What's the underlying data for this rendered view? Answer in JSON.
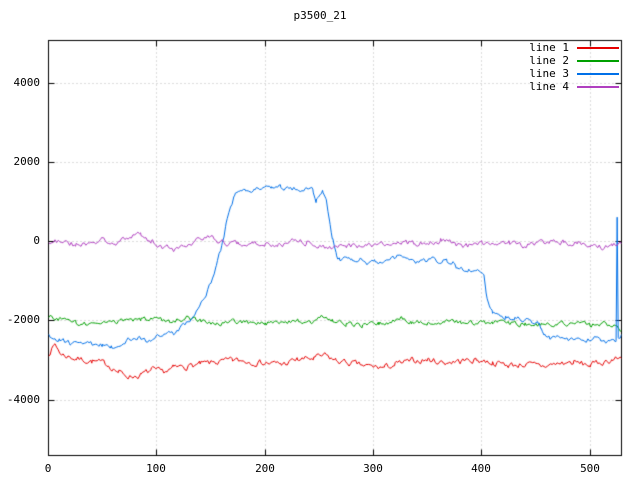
{
  "window_title": "p3500_21",
  "chart_data": {
    "type": "line",
    "title": "p3500_21",
    "xlim": [
      0,
      529
    ],
    "ylim": [
      -5400,
      5080
    ],
    "xticks": [
      0,
      100,
      200,
      300,
      400,
      500
    ],
    "yticks": [
      -4000,
      -2000,
      0,
      2000,
      4000
    ],
    "grid": true,
    "legend_position": "top-right",
    "background": "#ffffff",
    "axis_color": "#000000",
    "grid_color": "#b8b8b8",
    "series": [
      {
        "name": "line 1",
        "color": "#e60000",
        "noise": 70,
        "keypoints": [
          [
            0,
            -2820
          ],
          [
            6,
            -2600
          ],
          [
            12,
            -2850
          ],
          [
            25,
            -2950
          ],
          [
            40,
            -3020
          ],
          [
            55,
            -3100
          ],
          [
            65,
            -3300
          ],
          [
            75,
            -3400
          ],
          [
            85,
            -3380
          ],
          [
            95,
            -3250
          ],
          [
            105,
            -3300
          ],
          [
            115,
            -3200
          ],
          [
            125,
            -3150
          ],
          [
            140,
            -3100
          ],
          [
            155,
            -3050
          ],
          [
            170,
            -3000
          ],
          [
            185,
            -3020
          ],
          [
            200,
            -3060
          ],
          [
            215,
            -3100
          ],
          [
            230,
            -2980
          ],
          [
            245,
            -2950
          ],
          [
            255,
            -2880
          ],
          [
            265,
            -3000
          ],
          [
            280,
            -3080
          ],
          [
            295,
            -3150
          ],
          [
            310,
            -3180
          ],
          [
            320,
            -3100
          ],
          [
            335,
            -3020
          ],
          [
            350,
            -2980
          ],
          [
            365,
            -3050
          ],
          [
            380,
            -3020
          ],
          [
            395,
            -2980
          ],
          [
            410,
            -3050
          ],
          [
            425,
            -3120
          ],
          [
            440,
            -3100
          ],
          [
            455,
            -3150
          ],
          [
            470,
            -3080
          ],
          [
            485,
            -3050
          ],
          [
            500,
            -3120
          ],
          [
            510,
            -3050
          ],
          [
            520,
            -2980
          ],
          [
            529,
            -2940
          ]
        ]
      },
      {
        "name": "line 2",
        "color": "#00a000",
        "noise": 55,
        "keypoints": [
          [
            0,
            -1880
          ],
          [
            10,
            -1950
          ],
          [
            25,
            -2050
          ],
          [
            40,
            -2100
          ],
          [
            55,
            -2050
          ],
          [
            70,
            -2000
          ],
          [
            85,
            -1980
          ],
          [
            100,
            -1950
          ],
          [
            112,
            -2060
          ],
          [
            122,
            -1950
          ],
          [
            130,
            -1880
          ],
          [
            140,
            -2000
          ],
          [
            155,
            -2060
          ],
          [
            170,
            -2010
          ],
          [
            185,
            -2040
          ],
          [
            200,
            -2060
          ],
          [
            215,
            -2020
          ],
          [
            230,
            -1990
          ],
          [
            242,
            -2040
          ],
          [
            252,
            -1870
          ],
          [
            262,
            -2000
          ],
          [
            275,
            -2080
          ],
          [
            290,
            -2120
          ],
          [
            305,
            -2060
          ],
          [
            318,
            -2000
          ],
          [
            326,
            -1900
          ],
          [
            335,
            -2030
          ],
          [
            350,
            -2060
          ],
          [
            365,
            -2010
          ],
          [
            380,
            -2040
          ],
          [
            395,
            -2060
          ],
          [
            410,
            -2030
          ],
          [
            425,
            -2060
          ],
          [
            440,
            -2080
          ],
          [
            455,
            -2100
          ],
          [
            470,
            -2060
          ],
          [
            485,
            -2080
          ],
          [
            500,
            -2100
          ],
          [
            512,
            -2080
          ],
          [
            522,
            -2150
          ],
          [
            529,
            -2220
          ]
        ]
      },
      {
        "name": "line 3",
        "color": "#0070e8",
        "noise": 55,
        "keypoints": [
          [
            0,
            -2380
          ],
          [
            10,
            -2480
          ],
          [
            20,
            -2550
          ],
          [
            30,
            -2500
          ],
          [
            40,
            -2560
          ],
          [
            50,
            -2620
          ],
          [
            58,
            -2660
          ],
          [
            66,
            -2600
          ],
          [
            74,
            -2480
          ],
          [
            82,
            -2400
          ],
          [
            90,
            -2500
          ],
          [
            98,
            -2430
          ],
          [
            104,
            -2340
          ],
          [
            110,
            -2290
          ],
          [
            115,
            -2340
          ],
          [
            120,
            -2210
          ],
          [
            126,
            -2090
          ],
          [
            132,
            -1930
          ],
          [
            138,
            -1720
          ],
          [
            144,
            -1430
          ],
          [
            150,
            -1050
          ],
          [
            155,
            -600
          ],
          [
            160,
            -100
          ],
          [
            164,
            420
          ],
          [
            168,
            900
          ],
          [
            172,
            1180
          ],
          [
            176,
            1290
          ],
          [
            182,
            1310
          ],
          [
            190,
            1340
          ],
          [
            198,
            1390
          ],
          [
            206,
            1360
          ],
          [
            214,
            1390
          ],
          [
            222,
            1340
          ],
          [
            230,
            1360
          ],
          [
            238,
            1330
          ],
          [
            244,
            1310
          ],
          [
            247,
            1040
          ],
          [
            250,
            1200
          ],
          [
            253,
            1260
          ],
          [
            256,
            1150
          ],
          [
            258,
            700
          ],
          [
            260,
            380
          ],
          [
            262,
            120
          ],
          [
            264,
            -160
          ],
          [
            266,
            -380
          ],
          [
            269,
            -460
          ],
          [
            274,
            -400
          ],
          [
            280,
            -490
          ],
          [
            287,
            -430
          ],
          [
            294,
            -530
          ],
          [
            301,
            -490
          ],
          [
            308,
            -540
          ],
          [
            315,
            -470
          ],
          [
            322,
            -390
          ],
          [
            327,
            -350
          ],
          [
            333,
            -480
          ],
          [
            340,
            -540
          ],
          [
            347,
            -500
          ],
          [
            354,
            -460
          ],
          [
            361,
            -500
          ],
          [
            368,
            -480
          ],
          [
            374,
            -540
          ],
          [
            377,
            -660
          ],
          [
            382,
            -690
          ],
          [
            388,
            -730
          ],
          [
            394,
            -690
          ],
          [
            399,
            -760
          ],
          [
            402,
            -900
          ],
          [
            404,
            -1250
          ],
          [
            407,
            -1650
          ],
          [
            410,
            -1820
          ],
          [
            415,
            -1870
          ],
          [
            422,
            -1900
          ],
          [
            430,
            -1940
          ],
          [
            438,
            -1970
          ],
          [
            446,
            -1990
          ],
          [
            452,
            -2020
          ],
          [
            455,
            -2180
          ],
          [
            458,
            -2380
          ],
          [
            463,
            -2440
          ],
          [
            468,
            -2400
          ],
          [
            474,
            -2450
          ],
          [
            480,
            -2480
          ],
          [
            486,
            -2430
          ],
          [
            492,
            -2500
          ],
          [
            498,
            -2470
          ],
          [
            504,
            -2430
          ],
          [
            509,
            -2470
          ],
          [
            514,
            -2500
          ],
          [
            518,
            -2440
          ],
          [
            522,
            -2490
          ],
          [
            524,
            -2520
          ],
          [
            525,
            560
          ],
          [
            526,
            -2430
          ],
          [
            528,
            -2470
          ],
          [
            529,
            -2320
          ]
        ]
      },
      {
        "name": "line 4",
        "color": "#b040c0",
        "noise": 65,
        "keypoints": [
          [
            0,
            -60
          ],
          [
            12,
            30
          ],
          [
            25,
            -80
          ],
          [
            38,
            -20
          ],
          [
            50,
            40
          ],
          [
            62,
            -40
          ],
          [
            75,
            100
          ],
          [
            85,
            160
          ],
          [
            95,
            -20
          ],
          [
            105,
            -120
          ],
          [
            115,
            -190
          ],
          [
            125,
            -60
          ],
          [
            138,
            30
          ],
          [
            150,
            90
          ],
          [
            162,
            -30
          ],
          [
            175,
            -80
          ],
          [
            188,
            10
          ],
          [
            200,
            -40
          ],
          [
            212,
            -110
          ],
          [
            225,
            20
          ],
          [
            238,
            -30
          ],
          [
            250,
            -80
          ],
          [
            262,
            -190
          ],
          [
            275,
            -80
          ],
          [
            288,
            -120
          ],
          [
            300,
            -90
          ],
          [
            312,
            -20
          ],
          [
            325,
            10
          ],
          [
            338,
            -60
          ],
          [
            350,
            -20
          ],
          [
            362,
            30
          ],
          [
            375,
            -70
          ],
          [
            388,
            -110
          ],
          [
            400,
            -60
          ],
          [
            412,
            -10
          ],
          [
            425,
            -50
          ],
          [
            438,
            -110
          ],
          [
            450,
            -70
          ],
          [
            462,
            -30
          ],
          [
            475,
            -10
          ],
          [
            488,
            -40
          ],
          [
            500,
            -90
          ],
          [
            510,
            -140
          ],
          [
            520,
            -110
          ],
          [
            529,
            -60
          ]
        ]
      }
    ]
  }
}
